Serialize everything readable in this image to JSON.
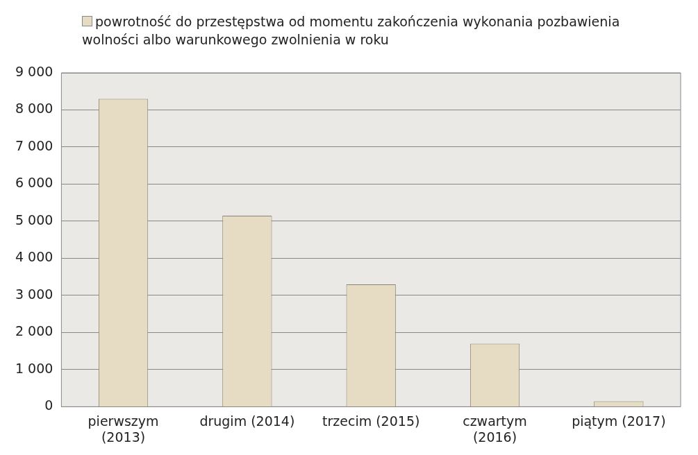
{
  "chart_data": {
    "type": "bar",
    "categories": [
      "pierwszym (2013)",
      "drugim (2014)",
      "trzecim (2015)",
      "czwartym (2016)",
      "piątym (2017)"
    ],
    "series": [
      {
        "name": "powrotność do przestępstwa od momentu zakończenia wykonania pozbawienia wolności albo warunkowego zwolnienia w roku",
        "color": "#e6dcc3",
        "values": [
          8300,
          5150,
          3300,
          1700,
          150
        ]
      }
    ],
    "ylim": [
      0,
      9000
    ],
    "yticks": [
      {
        "value": 0,
        "label": "0"
      },
      {
        "value": 1000,
        "label": "1 000"
      },
      {
        "value": 2000,
        "label": "2 000"
      },
      {
        "value": 3000,
        "label": "3 000"
      },
      {
        "value": 4000,
        "label": "4 000"
      },
      {
        "value": 5000,
        "label": "5 000"
      },
      {
        "value": 6000,
        "label": "6 000"
      },
      {
        "value": 7000,
        "label": "7 000"
      },
      {
        "value": 8000,
        "label": "8 000"
      },
      {
        "value": 9000,
        "label": "9 000"
      }
    ],
    "grid": "y",
    "legend": "top"
  }
}
